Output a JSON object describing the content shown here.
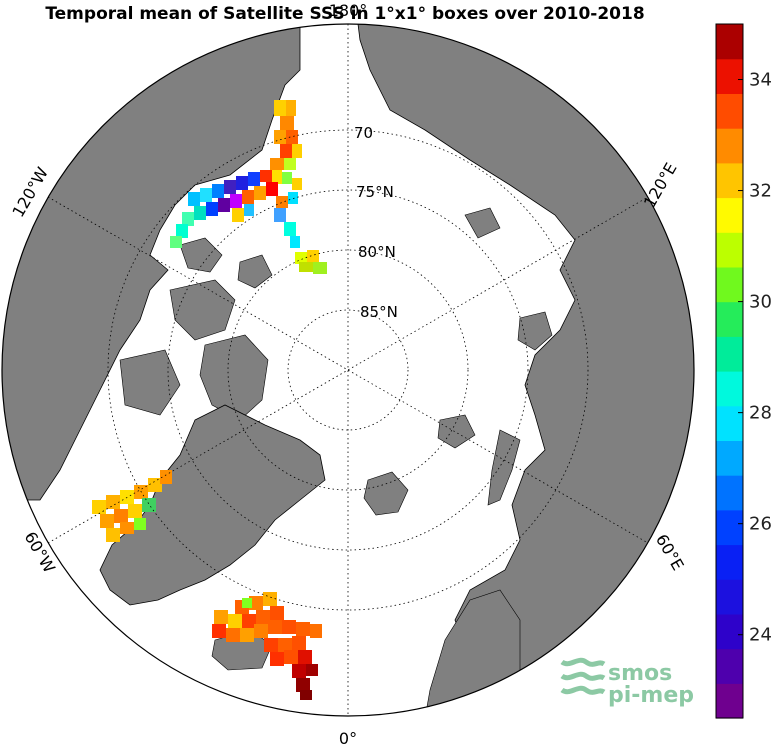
{
  "title": "Temporal mean of Satellite SSS in 1°x1° boxes over 2010-2018",
  "map": {
    "projection": "north polar stereographic",
    "land_color": "#808080",
    "ocean_color": "#ffffff",
    "latitude_labels": [
      "70",
      "75°N",
      "80°N",
      "85°N"
    ],
    "longitude_labels": {
      "top": "180°",
      "upper_left": "120°W",
      "upper_right": "120°E",
      "lower_left": "60°W",
      "lower_right": "60°E",
      "bottom": "0°"
    }
  },
  "colorbar": {
    "colormap": "jet",
    "range": [
      22.5,
      35
    ],
    "ticks": [
      "34",
      "32",
      "30",
      "28",
      "26",
      "24"
    ]
  },
  "logo": {
    "line1": "smos",
    "line2": "pi-mep",
    "color": "#8cc9a4"
  }
}
